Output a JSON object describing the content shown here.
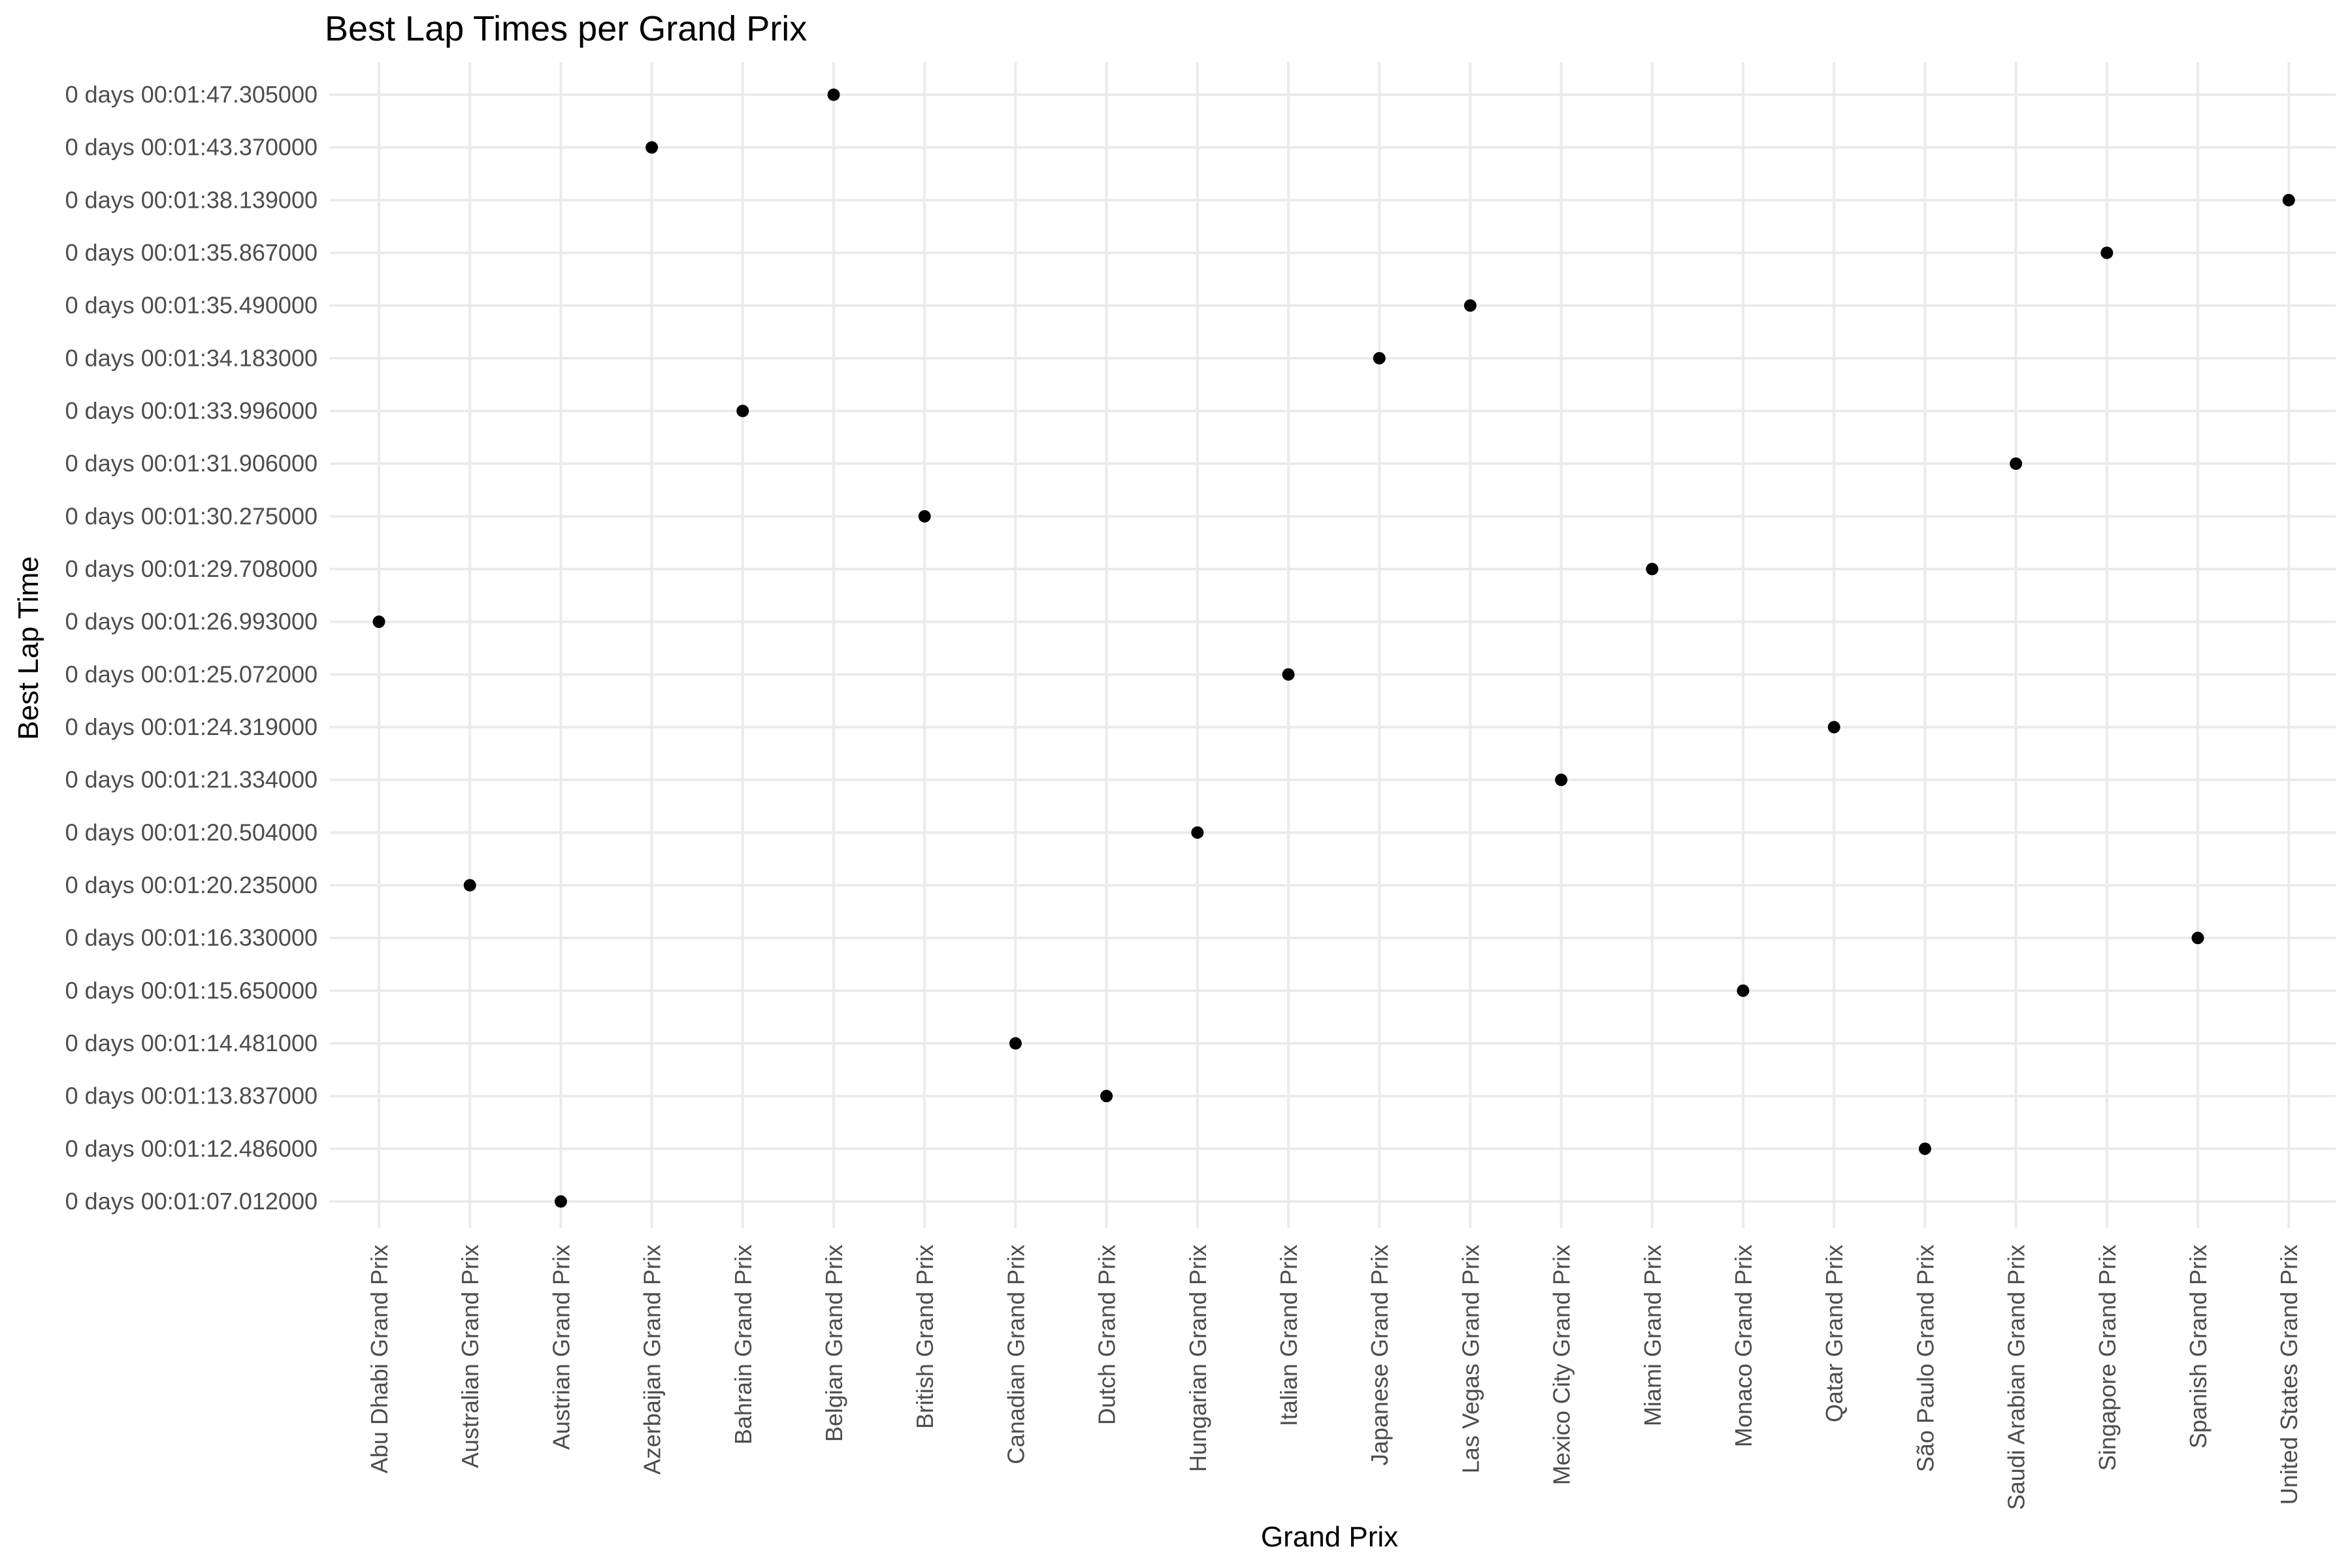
{
  "chart_data": {
    "type": "scatter",
    "title": "Best Lap Times per Grand Prix",
    "xlabel": "Grand Prix",
    "ylabel": "Best Lap Time",
    "grid": true,
    "legend": "none",
    "point_color": "#000000",
    "background": "#ffffff",
    "grid_color": "#ebebeb",
    "y_categories": [
      "0 days 00:01:07.012000",
      "0 days 00:01:12.486000",
      "0 days 00:01:13.837000",
      "0 days 00:01:14.481000",
      "0 days 00:01:15.650000",
      "0 days 00:01:16.330000",
      "0 days 00:01:20.235000",
      "0 days 00:01:20.504000",
      "0 days 00:01:21.334000",
      "0 days 00:01:24.319000",
      "0 days 00:01:25.072000",
      "0 days 00:01:26.993000",
      "0 days 00:01:29.708000",
      "0 days 00:01:30.275000",
      "0 days 00:01:31.906000",
      "0 days 00:01:33.996000",
      "0 days 00:01:34.183000",
      "0 days 00:01:35.490000",
      "0 days 00:01:35.867000",
      "0 days 00:01:38.139000",
      "0 days 00:01:43.370000",
      "0 days 00:01:47.305000"
    ],
    "points": [
      {
        "x": "Abu Dhabi Grand Prix",
        "y": "0 days 00:01:26.993000"
      },
      {
        "x": "Australian Grand Prix",
        "y": "0 days 00:01:20.235000"
      },
      {
        "x": "Austrian Grand Prix",
        "y": "0 days 00:01:07.012000"
      },
      {
        "x": "Azerbaijan Grand Prix",
        "y": "0 days 00:01:43.370000"
      },
      {
        "x": "Bahrain Grand Prix",
        "y": "0 days 00:01:33.996000"
      },
      {
        "x": "Belgian Grand Prix",
        "y": "0 days 00:01:47.305000"
      },
      {
        "x": "British Grand Prix",
        "y": "0 days 00:01:30.275000"
      },
      {
        "x": "Canadian Grand Prix",
        "y": "0 days 00:01:14.481000"
      },
      {
        "x": "Dutch Grand Prix",
        "y": "0 days 00:01:13.837000"
      },
      {
        "x": "Hungarian Grand Prix",
        "y": "0 days 00:01:20.504000"
      },
      {
        "x": "Italian Grand Prix",
        "y": "0 days 00:01:25.072000"
      },
      {
        "x": "Japanese Grand Prix",
        "y": "0 days 00:01:34.183000"
      },
      {
        "x": "Las Vegas Grand Prix",
        "y": "0 days 00:01:35.490000"
      },
      {
        "x": "Mexico City Grand Prix",
        "y": "0 days 00:01:21.334000"
      },
      {
        "x": "Miami Grand Prix",
        "y": "0 days 00:01:29.708000"
      },
      {
        "x": "Monaco Grand Prix",
        "y": "0 days 00:01:15.650000"
      },
      {
        "x": "Qatar Grand Prix",
        "y": "0 days 00:01:24.319000"
      },
      {
        "x": "São Paulo Grand Prix",
        "y": "0 days 00:01:12.486000"
      },
      {
        "x": "Saudi Arabian Grand Prix",
        "y": "0 days 00:01:31.906000"
      },
      {
        "x": "Singapore Grand Prix",
        "y": "0 days 00:01:35.867000"
      },
      {
        "x": "Spanish Grand Prix",
        "y": "0 days 00:01:16.330000"
      },
      {
        "x": "United States Grand Prix",
        "y": "0 days 00:01:38.139000"
      }
    ]
  }
}
